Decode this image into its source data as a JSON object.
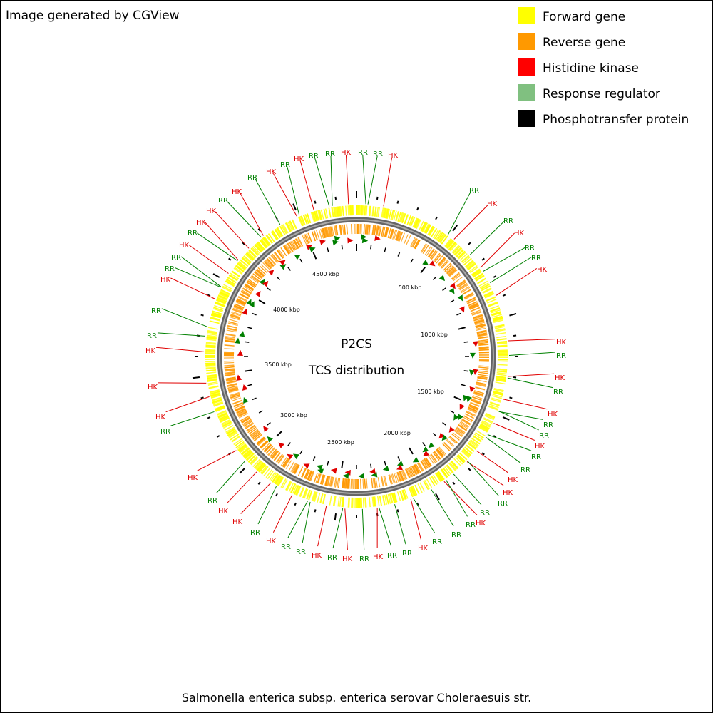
{
  "header": {
    "title": "Image generated by CGView"
  },
  "legend": [
    {
      "label": "Forward gene",
      "color": "#ffff00"
    },
    {
      "label": "Reverse gene",
      "color": "#ff9900"
    },
    {
      "label": "Histidine kinase",
      "color": "#ff0000"
    },
    {
      "label": "Response regulator",
      "color": "#80c080"
    },
    {
      "label": "Phosphotransfer protein",
      "color": "#000000"
    }
  ],
  "center": {
    "title": "P2CS",
    "subtitle": "TCS distribution"
  },
  "scale_labels": [
    "500 kbp",
    "1000 kbp",
    "1500 kbp",
    "2000 kbp",
    "2500 kbp",
    "3000 kbp",
    "3500 kbp",
    "4000 kbp",
    "4500 kbp"
  ],
  "feature_labels": [
    {
      "label": "RR",
      "color": "#008000"
    },
    {
      "label": "HK",
      "color": "#e00000"
    },
    {
      "label": "RR",
      "color": "#008000"
    },
    {
      "label": "RR",
      "color": "#008000"
    },
    {
      "label": "HK",
      "color": "#e00000"
    },
    {
      "label": "RR",
      "color": "#008000"
    },
    {
      "label": "HK",
      "color": "#e00000"
    },
    {
      "label": "RR",
      "color": "#008000"
    },
    {
      "label": "HK",
      "color": "#e00000"
    },
    {
      "label": "RR",
      "color": "#008000"
    },
    {
      "label": "RR",
      "color": "#008000"
    },
    {
      "label": "HK",
      "color": "#e00000"
    },
    {
      "label": "HK",
      "color": "#e00000"
    },
    {
      "label": "RR",
      "color": "#008000"
    },
    {
      "label": "HK",
      "color": "#e00000"
    },
    {
      "label": "RR",
      "color": "#008000"
    },
    {
      "label": "HK",
      "color": "#e00000"
    },
    {
      "label": "RR",
      "color": "#008000"
    },
    {
      "label": "RR",
      "color": "#008000"
    },
    {
      "label": "HK",
      "color": "#e00000"
    },
    {
      "label": "RR",
      "color": "#008000"
    },
    {
      "label": "RR",
      "color": "#008000"
    },
    {
      "label": "HK",
      "color": "#e00000"
    },
    {
      "label": "HK",
      "color": "#e00000"
    },
    {
      "label": "RR",
      "color": "#008000"
    },
    {
      "label": "RR",
      "color": "#008000"
    },
    {
      "label": "HK",
      "color": "#e00000"
    },
    {
      "label": "RR",
      "color": "#008000"
    },
    {
      "label": "RR",
      "color": "#008000"
    },
    {
      "label": "RR",
      "color": "#008000"
    },
    {
      "label": "HK",
      "color": "#e00000"
    },
    {
      "label": "RR",
      "color": "#008000"
    },
    {
      "label": "RR",
      "color": "#008000"
    },
    {
      "label": "HK",
      "color": "#e00000"
    },
    {
      "label": "RR",
      "color": "#008000"
    },
    {
      "label": "HK",
      "color": "#e00000"
    },
    {
      "label": "RR",
      "color": "#008000"
    },
    {
      "label": "HK",
      "color": "#e00000"
    },
    {
      "label": "RR",
      "color": "#008000"
    },
    {
      "label": "RR",
      "color": "#008000"
    },
    {
      "label": "HK",
      "color": "#e00000"
    },
    {
      "label": "RR",
      "color": "#008000"
    },
    {
      "label": "HK",
      "color": "#e00000"
    },
    {
      "label": "HK",
      "color": "#e00000"
    },
    {
      "label": "RR",
      "color": "#008000"
    },
    {
      "label": "HK",
      "color": "#e00000"
    },
    {
      "label": "RR",
      "color": "#008000"
    },
    {
      "label": "HK",
      "color": "#e00000"
    },
    {
      "label": "HK",
      "color": "#e00000"
    },
    {
      "label": "HK",
      "color": "#e00000"
    },
    {
      "label": "RR",
      "color": "#008000"
    },
    {
      "label": "RR",
      "color": "#008000"
    },
    {
      "label": "HK",
      "color": "#e00000"
    },
    {
      "label": "RR",
      "color": "#008000"
    },
    {
      "label": "RR",
      "color": "#008000"
    },
    {
      "label": "HK",
      "color": "#e00000"
    },
    {
      "label": "RR",
      "color": "#008000"
    },
    {
      "label": "HK",
      "color": "#e00000"
    },
    {
      "label": "HK",
      "color": "#e00000"
    },
    {
      "label": "RR",
      "color": "#008000"
    },
    {
      "label": "HK",
      "color": "#e00000"
    },
    {
      "label": "RR",
      "color": "#008000"
    },
    {
      "label": "HK",
      "color": "#e00000"
    },
    {
      "label": "RR",
      "color": "#008000"
    },
    {
      "label": "HK",
      "color": "#e00000"
    },
    {
      "label": "RR",
      "color": "#008000"
    }
  ],
  "footer": "Salmonella enterica subsp. enterica serovar Choleraesuis str."
}
